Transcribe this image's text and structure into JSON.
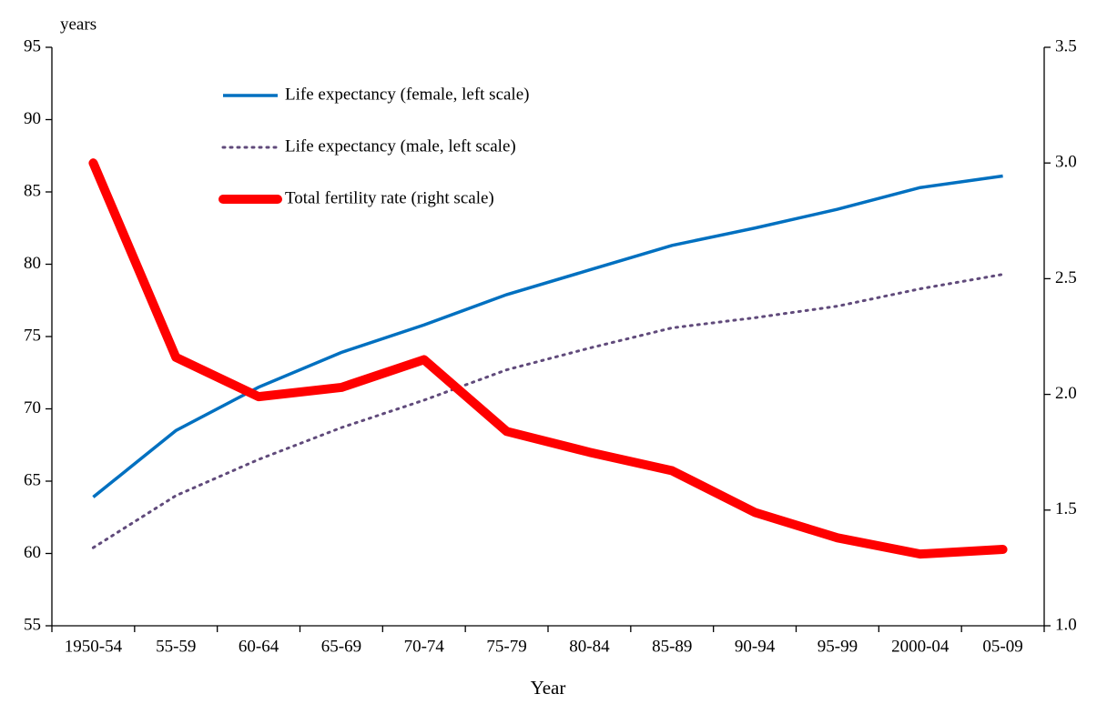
{
  "chart_data": {
    "type": "line",
    "y_label": "years",
    "x_label": "Year",
    "categories": [
      "1950-54",
      "55-59",
      "60-64",
      "65-69",
      "70-74",
      "75-79",
      "80-84",
      "85-89",
      "90-94",
      "95-99",
      "2000-04",
      "05-09"
    ],
    "ylim": [
      55,
      95
    ],
    "yticks": [
      55,
      60,
      65,
      70,
      75,
      80,
      85,
      90,
      95
    ],
    "y2lim": [
      1,
      3.5
    ],
    "y2ticks": [
      {
        "value": 1,
        "label": "1.0"
      },
      1.5,
      {
        "value": 2,
        "label": "2.0"
      },
      2.5,
      {
        "value": 3,
        "label": "3.0"
      },
      3.5
    ],
    "series": [
      {
        "name": "Life expectancy (female, left scale)",
        "color": "#0070c0",
        "style": "solid",
        "values": [
          63.9,
          68.5,
          71.5,
          73.9,
          75.8,
          77.9,
          79.6,
          81.3,
          82.5,
          83.8,
          85.3,
          86.1
        ]
      },
      {
        "name": "Life expectancy (male, left scale)",
        "color": "#604a7b",
        "style": "dotted",
        "values": [
          60.4,
          64.0,
          66.5,
          68.7,
          70.6,
          72.7,
          74.2,
          75.6,
          76.3,
          77.1,
          78.3,
          79.3
        ]
      },
      {
        "name": "Total fertility rate (right scale)",
        "color": "#ff0000",
        "style": "thick",
        "axis": "y2",
        "values": [
          3.0,
          2.16,
          1.99,
          2.03,
          2.15,
          1.84,
          1.75,
          1.67,
          1.49,
          1.38,
          1.31,
          1.33
        ]
      }
    ]
  }
}
